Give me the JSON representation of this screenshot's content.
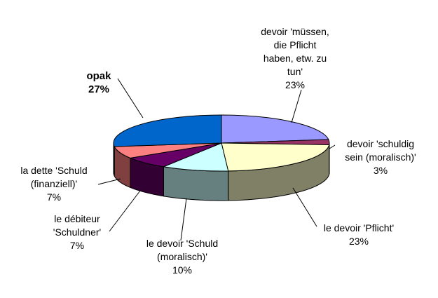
{
  "chart_data": {
    "type": "pie",
    "title": "",
    "style": "3d-exploded-ellipse",
    "slices": [
      {
        "label": "devoir 'müssen,\ndie Pflicht\nhaben, etw. zu\ntun'",
        "value": 23,
        "pct_text": "23%",
        "top": "#9999ff",
        "side": "#4d4d80"
      },
      {
        "label": "devoir 'schuldig\nsein (moralisch)'",
        "value": 3,
        "pct_text": "3%",
        "top": "#993366",
        "side": "#4d1a33"
      },
      {
        "label": "le devoir 'Pflicht'",
        "value": 23,
        "pct_text": "23%",
        "top": "#ffffcc",
        "side": "#808066"
      },
      {
        "label": "le devoir 'Schuld\n(moralisch)'",
        "value": 10,
        "pct_text": "10%",
        "top": "#ccffff",
        "side": "#668080"
      },
      {
        "label": "le débiteur\n'Schuldner'",
        "value": 7,
        "pct_text": "7%",
        "top": "#660066",
        "side": "#330033"
      },
      {
        "label": "la dette 'Schuld\n(finanziell)'",
        "value": 7,
        "pct_text": "7%",
        "top": "#ff8080",
        "side": "#804040"
      },
      {
        "label": "opak",
        "value": 27,
        "pct_text": "27%",
        "top": "#0066cc",
        "side": "#003366",
        "bold": true
      }
    ]
  }
}
